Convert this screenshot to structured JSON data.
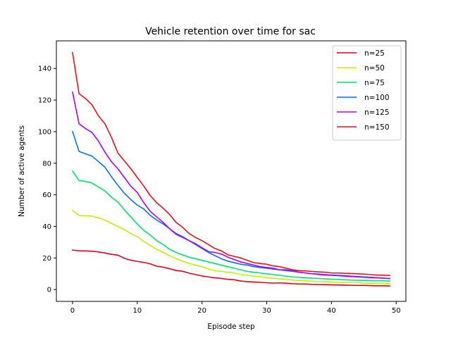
{
  "chart_data": {
    "type": "line",
    "title": "Vehicle retention over time for sac",
    "xlabel": "Episode step",
    "ylabel": "Number of active agents",
    "xlim": [
      -2.5,
      51.5
    ],
    "ylim": [
      -7.5,
      157.5
    ],
    "xticks": [
      0,
      10,
      20,
      30,
      40,
      50
    ],
    "yticks": [
      0,
      20,
      40,
      60,
      80,
      100,
      120,
      140
    ],
    "grid": false,
    "legend_position": "top-right",
    "x": [
      0,
      1,
      2,
      3,
      4,
      5,
      6,
      7,
      8,
      9,
      10,
      11,
      12,
      13,
      14,
      15,
      16,
      17,
      18,
      19,
      20,
      21,
      22,
      23,
      24,
      25,
      26,
      27,
      28,
      29,
      30,
      31,
      32,
      33,
      34,
      35,
      36,
      37,
      38,
      39,
      40,
      41,
      42,
      43,
      44,
      45,
      46,
      47,
      48,
      49
    ],
    "series": [
      {
        "name": "n=25",
        "color": "#e6001e",
        "values": [
          25,
          24.6,
          24.5,
          24.3,
          23.8,
          23.2,
          22.3,
          21.8,
          19.8,
          18.6,
          17.8,
          17.2,
          16.3,
          14.8,
          14.2,
          13.2,
          12.1,
          11.6,
          10.4,
          9.5,
          8.6,
          8.0,
          7.4,
          7.0,
          6.5,
          6.2,
          5.4,
          5.0,
          4.8,
          4.6,
          4.3,
          4.1,
          4.2,
          4.0,
          3.7,
          3.5,
          3.5,
          3.3,
          3.2,
          3.1,
          3.0,
          2.9,
          2.8,
          2.7,
          2.6,
          2.6,
          2.5,
          2.4,
          2.4,
          2.3
        ]
      },
      {
        "name": "n=50",
        "color": "#c5f000",
        "values": [
          50,
          47,
          46.8,
          46.5,
          45.5,
          44,
          42,
          40,
          38,
          35.5,
          33.5,
          30.5,
          28,
          25.5,
          23.5,
          21.5,
          19.5,
          18,
          16.5,
          15.5,
          14.5,
          13,
          12,
          11.5,
          11,
          10.5,
          9.5,
          9,
          8.5,
          8.2,
          7.5,
          7.2,
          6.8,
          6.5,
          6,
          5.8,
          5.5,
          5.3,
          5.1,
          5,
          4.8,
          4.6,
          4.5,
          4.4,
          4.3,
          4.1,
          4,
          3.9,
          3.8,
          3.7
        ]
      },
      {
        "name": "n=75",
        "color": "#00e56a",
        "values": [
          75,
          69,
          68.5,
          67.5,
          65,
          62.5,
          58.5,
          55.5,
          50.5,
          46,
          41.5,
          37.5,
          34.5,
          31,
          28.5,
          25.5,
          23.5,
          22,
          20.5,
          19.5,
          18.5,
          17.5,
          16.5,
          15.5,
          14.5,
          13.5,
          12.5,
          11.5,
          11,
          10.5,
          10,
          9.5,
          9,
          8.5,
          8,
          7.8,
          7.5,
          7.2,
          7,
          6.8,
          6.6,
          6.4,
          6.2,
          6,
          5.9,
          5.8,
          5.7,
          5.6,
          5.5,
          5.4
        ]
      },
      {
        "name": "n=100",
        "color": "#0072ff",
        "values": [
          100,
          87.5,
          86,
          84.5,
          81,
          77.5,
          71.5,
          66,
          61,
          57,
          53.5,
          51,
          47,
          44,
          41.5,
          38.5,
          35.5,
          33.5,
          31,
          28.5,
          26,
          23.5,
          21.5,
          19.5,
          18,
          17,
          16,
          15.5,
          14.5,
          14,
          13.5,
          13,
          12.5,
          12,
          11.5,
          11,
          10.5,
          10,
          9.8,
          9.5,
          9.2,
          9,
          8.8,
          8.5,
          8.2,
          8,
          7.8,
          7.5,
          7.2,
          7
        ]
      },
      {
        "name": "n=125",
        "color": "#b000ff",
        "values": [
          125,
          105,
          102,
          99.5,
          94,
          87,
          81,
          76.5,
          71,
          65.5,
          61.5,
          55,
          49.5,
          46,
          42.5,
          38.5,
          35,
          33,
          31,
          29,
          26.5,
          24,
          23.5,
          22.5,
          20.5,
          19,
          17.5,
          16.5,
          15.5,
          14.5,
          14,
          13.5,
          12.5,
          12.5,
          12,
          11,
          10.5,
          10,
          9.5,
          9.2,
          9,
          8.8,
          8.5,
          8.2,
          8,
          7.8,
          7.6,
          7.4,
          7.2,
          7
        ]
      },
      {
        "name": "n=150",
        "color": "#ee1020",
        "values": [
          150,
          124,
          121,
          117,
          110,
          105,
          96.5,
          86.5,
          81.5,
          76.5,
          71,
          65.5,
          59.5,
          55,
          51.5,
          47.5,
          42.5,
          39.5,
          35.5,
          33,
          31,
          28.5,
          26,
          24.5,
          22,
          21,
          20,
          18.5,
          17,
          16.5,
          16,
          15,
          14.5,
          13.5,
          12.5,
          12,
          11.8,
          11.5,
          11.2,
          11,
          10.5,
          10.5,
          10.3,
          10.2,
          10,
          9.8,
          9.5,
          9.2,
          9.1,
          9
        ]
      }
    ]
  }
}
